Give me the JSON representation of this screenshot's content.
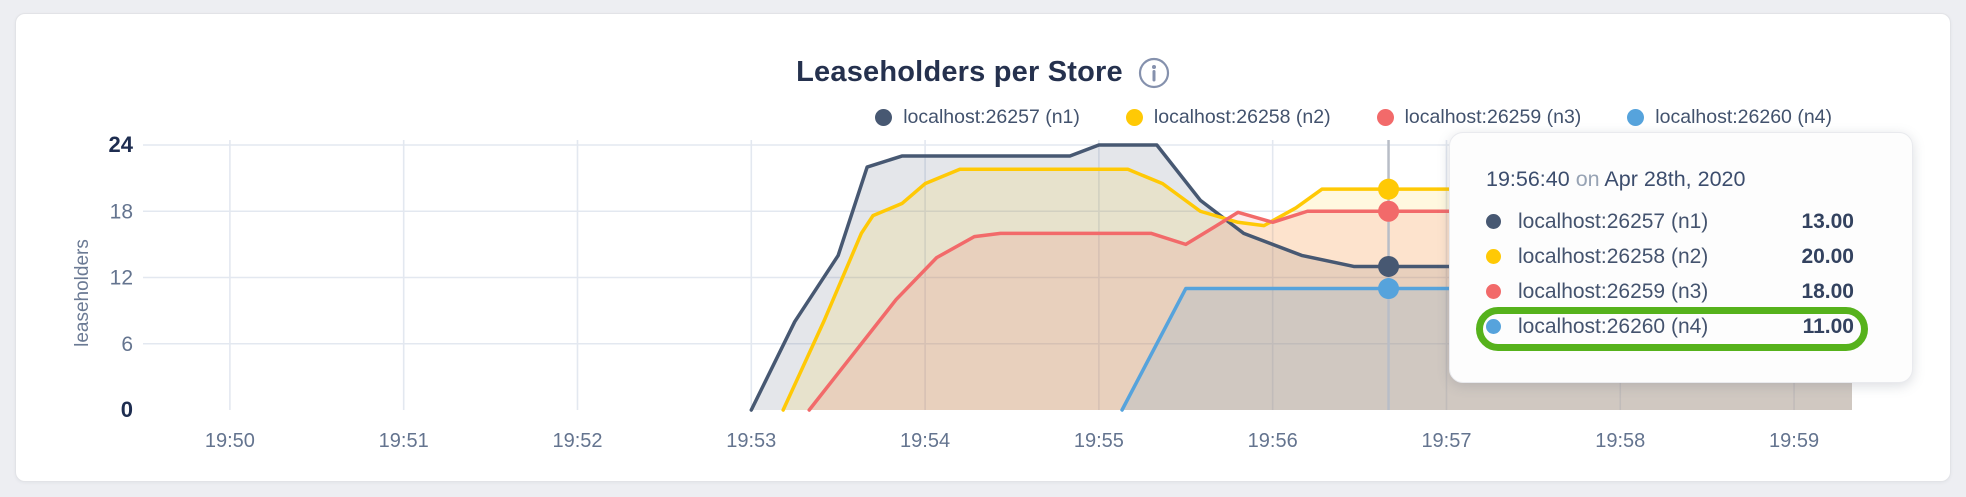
{
  "header": {
    "title": "Leaseholders per Store"
  },
  "chart_data": {
    "type": "area",
    "title": "Leaseholders per Store",
    "xlabel": "",
    "ylabel": "leaseholders",
    "ylim": [
      0,
      24
    ],
    "grid": true,
    "legend_position": "top-right",
    "x_unit": "seconds after 19:50:00",
    "x_domain_seconds": [
      -30,
      560
    ],
    "y_ticks": [
      {
        "v": 0,
        "label": "0",
        "bold": true
      },
      {
        "v": 6,
        "label": "6",
        "bold": false
      },
      {
        "v": 12,
        "label": "12",
        "bold": false
      },
      {
        "v": 18,
        "label": "18",
        "bold": false
      },
      {
        "v": 24,
        "label": "24",
        "bold": true
      }
    ],
    "x_ticks": [
      {
        "t": 0,
        "label": "19:50"
      },
      {
        "t": 60,
        "label": "19:51"
      },
      {
        "t": 120,
        "label": "19:52"
      },
      {
        "t": 180,
        "label": "19:53"
      },
      {
        "t": 240,
        "label": "19:54"
      },
      {
        "t": 300,
        "label": "19:55"
      },
      {
        "t": 360,
        "label": "19:56"
      },
      {
        "t": 420,
        "label": "19:57"
      },
      {
        "t": 480,
        "label": "19:58"
      },
      {
        "t": 540,
        "label": "19:59"
      }
    ],
    "series": [
      {
        "name": "localhost:26257 (n1)",
        "color": "#475872",
        "fill_opacity": 0.15,
        "points": [
          [
            180,
            0
          ],
          [
            195,
            8
          ],
          [
            210,
            14
          ],
          [
            220,
            22
          ],
          [
            232,
            23
          ],
          [
            290,
            23
          ],
          [
            300,
            24
          ],
          [
            320,
            24
          ],
          [
            335,
            19
          ],
          [
            350,
            16
          ],
          [
            370,
            14
          ],
          [
            388,
            13
          ],
          [
            560,
            13
          ]
        ]
      },
      {
        "name": "localhost:26258 (n2)",
        "color": "#ffc905",
        "fill_opacity": 0.13,
        "points": [
          [
            191,
            0
          ],
          [
            205,
            8
          ],
          [
            218,
            16
          ],
          [
            222,
            17.6
          ],
          [
            232,
            18.7
          ],
          [
            240,
            20.5
          ],
          [
            252,
            21.8
          ],
          [
            310,
            21.8
          ],
          [
            322,
            20.5
          ],
          [
            335,
            18
          ],
          [
            348,
            17
          ],
          [
            357,
            16.7
          ],
          [
            368,
            18.3
          ],
          [
            377,
            20
          ],
          [
            560,
            20
          ]
        ]
      },
      {
        "name": "localhost:26259 (n3)",
        "color": "#f26a6a",
        "fill_opacity": 0.15,
        "points": [
          [
            200,
            0
          ],
          [
            215,
            5
          ],
          [
            230,
            10
          ],
          [
            244,
            13.8
          ],
          [
            257,
            15.7
          ],
          [
            266,
            16
          ],
          [
            318,
            16
          ],
          [
            330,
            15
          ],
          [
            340,
            16.6
          ],
          [
            348,
            17.9
          ],
          [
            360,
            17
          ],
          [
            372,
            18
          ],
          [
            560,
            18
          ]
        ]
      },
      {
        "name": "localhost:26260 (n4)",
        "color": "#56a3dc",
        "fill_opacity": 0.16,
        "points": [
          [
            308,
            0
          ],
          [
            330,
            11
          ],
          [
            560,
            11
          ]
        ]
      }
    ],
    "hover": {
      "t": 400,
      "time": "19:56:40",
      "connector": "on",
      "date": "Apr 28th, 2020",
      "values": [
        "13.00",
        "20.00",
        "18.00",
        "11.00"
      ],
      "values_num": [
        13,
        20,
        18,
        11
      ],
      "crosshair_color": "#b8bdc7",
      "highlighted_series_index": 3,
      "highlight_color": "#56b21c"
    }
  }
}
